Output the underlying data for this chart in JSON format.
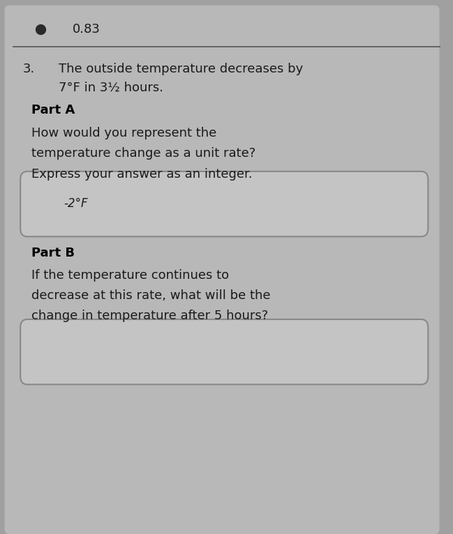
{
  "background_color": "#a0a0a0",
  "panel_color": "#b8b8b8",
  "top_label": "0.83",
  "question_number": "3.",
  "question_line1": "The outside temperature decreases by",
  "question_line2": "7°F in 3½ hours.",
  "part_a_label": "Part A",
  "part_a_line1": "How would you represent the",
  "part_a_line2": "temperature change as a unit rate?",
  "part_a_line3": "Express your answer as an integer.",
  "part_a_answer": "-2°F",
  "part_b_label": "Part B",
  "part_b_line1": "If the temperature continues to",
  "part_b_line2": "decrease at this rate, what will be the",
  "part_b_line3": "change in temperature after 5 hours?",
  "part_b_answer": "",
  "box_bg": "#c4c4c4",
  "box_border": "#888888",
  "text_color": "#1a1a1a",
  "bold_color": "#000000",
  "header_line_color": "#555555",
  "top_dot_color": "#2a2a2a"
}
